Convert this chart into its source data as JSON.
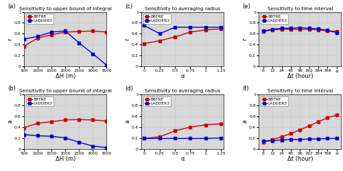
{
  "panel_a": {
    "title": "Sensitivity to upper bound of integral",
    "xlabel": "ΔH (m)",
    "ylabel": "r",
    "bbtre_x": [
      500,
      1000,
      1500,
      2000,
      2500,
      3000,
      3500
    ],
    "bbtre_y": [
      0.37,
      0.52,
      0.58,
      0.63,
      0.64,
      0.65,
      0.63
    ],
    "ladder_x": [
      500,
      1000,
      1500,
      2000,
      2500,
      3000,
      3500
    ],
    "ladder_y": [
      0.5,
      0.55,
      0.63,
      0.65,
      0.43,
      0.23,
      0.02
    ],
    "ylim": [
      0,
      1
    ],
    "xlim": [
      500,
      3500
    ],
    "xticks": [
      500,
      1000,
      1500,
      2000,
      2500,
      3000,
      3500
    ],
    "xtick_labels": [
      "500",
      "1000",
      "1500",
      "2000",
      "2500",
      "3000",
      "3500"
    ]
  },
  "panel_b": {
    "title": "Sensitivity to upper bound of integral",
    "xlabel": "ΔH (m)",
    "ylabel": "a",
    "bbtre_x": [
      500,
      1000,
      1500,
      2000,
      2500,
      3000,
      3500
    ],
    "bbtre_y": [
      0.39,
      0.47,
      0.5,
      0.53,
      0.54,
      0.53,
      0.51
    ],
    "ladder_x": [
      500,
      1000,
      1500,
      2000,
      2500,
      3000,
      3500
    ],
    "ladder_y": [
      0.26,
      0.24,
      0.23,
      0.2,
      0.12,
      0.05,
      0.02
    ],
    "ylim": [
      0,
      1
    ],
    "xlim": [
      500,
      3500
    ],
    "xticks": [
      500,
      1000,
      1500,
      2000,
      2500,
      3000,
      3500
    ],
    "xtick_labels": [
      "500",
      "1000",
      "1500",
      "2000",
      "2500",
      "3000",
      "3500"
    ]
  },
  "panel_c": {
    "title": "Sensitivity to averaging radius",
    "xlabel": "α",
    "ylabel": "r",
    "bbtre_x": [
      0,
      0.25,
      0.5,
      0.75,
      1.0,
      1.25
    ],
    "bbtre_y": [
      0.42,
      0.47,
      0.54,
      0.63,
      0.67,
      0.69
    ],
    "ladder_x": [
      0,
      0.25,
      0.5,
      0.75,
      1.0,
      1.25
    ],
    "ladder_y": [
      0.75,
      0.6,
      0.72,
      0.72,
      0.72,
      0.72
    ],
    "ylim": [
      0,
      1
    ],
    "xlim": [
      -0.05,
      1.3
    ],
    "xticks": [
      0,
      0.25,
      0.5,
      0.75,
      1.0,
      1.25
    ],
    "xtick_labels": [
      "0",
      "0.25",
      "0.5",
      "0.75",
      "1",
      "1.25"
    ]
  },
  "panel_d": {
    "title": "Sensitivity to averaging radius",
    "xlabel": "α",
    "ylabel": "a",
    "bbtre_x": [
      0,
      0.25,
      0.5,
      0.75,
      1.0,
      1.25
    ],
    "bbtre_y": [
      0.19,
      0.22,
      0.33,
      0.4,
      0.44,
      0.46
    ],
    "ladder_x": [
      0,
      0.25,
      0.5,
      0.75,
      1.0,
      1.25
    ],
    "ladder_y": [
      0.19,
      0.19,
      0.19,
      0.19,
      0.19,
      0.2
    ],
    "ylim": [
      0,
      1
    ],
    "xlim": [
      -0.05,
      1.3
    ],
    "xticks": [
      0,
      0.25,
      0.5,
      0.75,
      1.0,
      1.25
    ],
    "xtick_labels": [
      "0",
      "0.25",
      "0.5",
      "0.75",
      "1",
      "1.25"
    ]
  },
  "panel_e": {
    "title": "Sensitivity to time interval",
    "xlabel": "Δt (hour)",
    "ylabel": "r",
    "bbtre_x": [
      0,
      1,
      2,
      3,
      4,
      5,
      6,
      7,
      8
    ],
    "bbtre_y": [
      0.64,
      0.67,
      0.68,
      0.68,
      0.68,
      0.68,
      0.67,
      0.65,
      0.64
    ],
    "ladder_x": [
      0,
      1,
      2,
      3,
      4,
      5,
      6,
      7,
      8
    ],
    "ladder_y": [
      0.65,
      0.68,
      0.7,
      0.7,
      0.71,
      0.7,
      0.69,
      0.66,
      0.62
    ],
    "ylim": [
      0,
      1
    ],
    "xtick_labels": [
      "6",
      "12",
      "24",
      "48",
      "96",
      "192",
      "384",
      "768",
      "∞"
    ]
  },
  "panel_f": {
    "title": "Sensitivity to time interval",
    "xlabel": "Δt (hour)",
    "ylabel": "a",
    "bbtre_x": [
      0,
      1,
      2,
      3,
      4,
      5,
      6,
      7,
      8
    ],
    "bbtre_y": [
      0.12,
      0.17,
      0.22,
      0.28,
      0.35,
      0.42,
      0.5,
      0.57,
      0.62
    ],
    "ladder_x": [
      0,
      1,
      2,
      3,
      4,
      5,
      6,
      7,
      8
    ],
    "ladder_y": [
      0.14,
      0.15,
      0.16,
      0.17,
      0.17,
      0.18,
      0.18,
      0.19,
      0.19
    ],
    "ylim": [
      0,
      1
    ],
    "xtick_labels": [
      "6",
      "12",
      "24",
      "48",
      "96",
      "192",
      "384",
      "768",
      "∞"
    ]
  },
  "bbtre_color": "#cc0000",
  "ladder_color": "#0000cc",
  "marker": "s",
  "markersize": 2.5,
  "linewidth": 1.0,
  "grid_color": "#cccccc",
  "bg_color": "#d8d8d8",
  "yticks": [
    0,
    0.2,
    0.4,
    0.6,
    0.8,
    1
  ],
  "ytick_labels": [
    "0",
    "0.2",
    "0.4",
    "0.6",
    "0.8",
    "1"
  ]
}
